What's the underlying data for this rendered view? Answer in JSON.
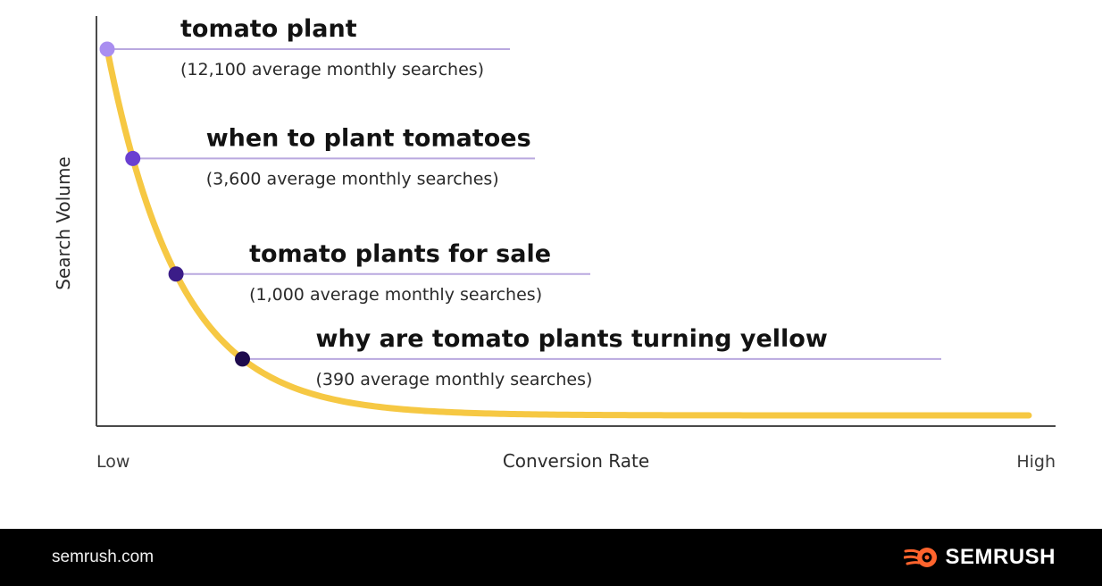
{
  "chart_data": {
    "type": "line",
    "xlabel": "Conversion Rate",
    "ylabel": "Search Volume",
    "x_start_label": "Low",
    "x_end_label": "High",
    "series": [
      {
        "points": [
          {
            "keyword": "tomato plant",
            "volume": 12100,
            "label": "(12,100 average monthly searches)",
            "color": "#a98ef0"
          },
          {
            "keyword": "when to plant tomatoes",
            "volume": 3600,
            "label": "(3,600 average monthly searches)",
            "color": "#6a3fd1"
          },
          {
            "keyword": "tomato plants for sale",
            "volume": 1000,
            "label": "(1,000 average monthly searches)",
            "color": "#3b1d88"
          },
          {
            "keyword": "why are tomato plants turning yellow",
            "volume": 390,
            "label": "(390 average monthly searches)",
            "color": "#1e0b4d"
          }
        ]
      }
    ],
    "curve_color": "#f6c843",
    "leader_line_color": "#b9a8df",
    "axis_color": "#4a4a4a",
    "grid": false
  },
  "footer": {
    "url": "semrush.com",
    "brand": "SEMRUSH",
    "brand_icon": "semrush-fireball-icon",
    "brand_icon_color": "#ff642d"
  }
}
